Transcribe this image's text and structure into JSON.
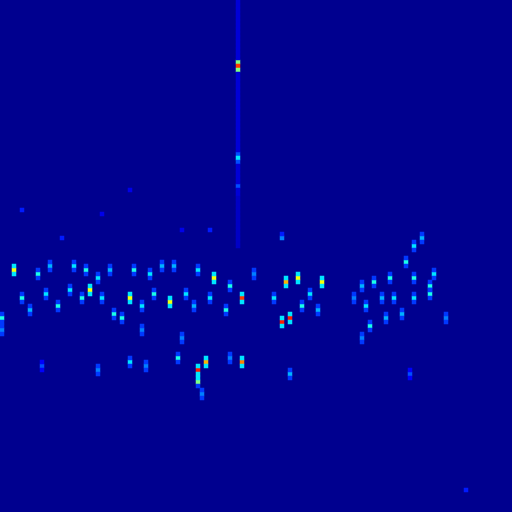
{
  "chart_data": {
    "type": "heatmap",
    "tick_labels": false,
    "grid": false,
    "xlim": [
      0,
      127
    ],
    "ylim": [
      0,
      127
    ],
    "zlim": [
      0,
      1
    ],
    "cells": [
      [
        3,
        60,
        0.62
      ],
      [
        3,
        61,
        0.35
      ],
      [
        3,
        59,
        0.35
      ],
      [
        9,
        59,
        0.4
      ],
      [
        9,
        60,
        0.18
      ],
      [
        9,
        58,
        0.18
      ],
      [
        12,
        61,
        0.3
      ],
      [
        12,
        62,
        0.18
      ],
      [
        12,
        60,
        0.18
      ],
      [
        18,
        61,
        0.35
      ],
      [
        18,
        62,
        0.18
      ],
      [
        18,
        60,
        0.18
      ],
      [
        21,
        60,
        0.4
      ],
      [
        21,
        61,
        0.18
      ],
      [
        21,
        59,
        0.18
      ],
      [
        24,
        58,
        0.35
      ],
      [
        24,
        59,
        0.18
      ],
      [
        24,
        57,
        0.18
      ],
      [
        27,
        60,
        0.3
      ],
      [
        27,
        61,
        0.18
      ],
      [
        27,
        59,
        0.18
      ],
      [
        33,
        60,
        0.4
      ],
      [
        33,
        61,
        0.18
      ],
      [
        33,
        59,
        0.18
      ],
      [
        37,
        59,
        0.35
      ],
      [
        37,
        60,
        0.18
      ],
      [
        37,
        58,
        0.18
      ],
      [
        40,
        61,
        0.3
      ],
      [
        40,
        62,
        0.18
      ],
      [
        40,
        60,
        0.18
      ],
      [
        43,
        61,
        0.3
      ],
      [
        43,
        62,
        0.18
      ],
      [
        43,
        60,
        0.18
      ],
      [
        49,
        60,
        0.35
      ],
      [
        49,
        61,
        0.18
      ],
      [
        49,
        59,
        0.18
      ],
      [
        53,
        58,
        0.62
      ],
      [
        53,
        59,
        0.35
      ],
      [
        53,
        57,
        0.35
      ],
      [
        57,
        56,
        0.4
      ],
      [
        57,
        57,
        0.18
      ],
      [
        57,
        55,
        0.18
      ],
      [
        63,
        59,
        0.25
      ],
      [
        63,
        60,
        0.18
      ],
      [
        63,
        58,
        0.18
      ],
      [
        71,
        57,
        0.7
      ],
      [
        71,
        58,
        0.35
      ],
      [
        71,
        56,
        0.35
      ],
      [
        74,
        58,
        0.62
      ],
      [
        74,
        59,
        0.35
      ],
      [
        74,
        57,
        0.35
      ],
      [
        80,
        57,
        0.62
      ],
      [
        80,
        58,
        0.35
      ],
      [
        80,
        56,
        0.35
      ],
      [
        90,
        56,
        0.3
      ],
      [
        90,
        57,
        0.18
      ],
      [
        90,
        55,
        0.18
      ],
      [
        93,
        57,
        0.4
      ],
      [
        93,
        58,
        0.18
      ],
      [
        93,
        56,
        0.18
      ],
      [
        97,
        58,
        0.4
      ],
      [
        97,
        59,
        0.18
      ],
      [
        97,
        57,
        0.18
      ],
      [
        101,
        62,
        0.4
      ],
      [
        101,
        63,
        0.18
      ],
      [
        101,
        61,
        0.18
      ],
      [
        103,
        66,
        0.35
      ],
      [
        103,
        67,
        0.18
      ],
      [
        103,
        65,
        0.18
      ],
      [
        105,
        68,
        0.3
      ],
      [
        105,
        69,
        0.18
      ],
      [
        105,
        67,
        0.18
      ],
      [
        107,
        56,
        0.4
      ],
      [
        107,
        57,
        0.18
      ],
      [
        107,
        55,
        0.18
      ],
      [
        108,
        59,
        0.35
      ],
      [
        108,
        60,
        0.18
      ],
      [
        108,
        58,
        0.18
      ],
      [
        103,
        58,
        0.4
      ],
      [
        103,
        59,
        0.18
      ],
      [
        103,
        57,
        0.18
      ],
      [
        0,
        48,
        0.4
      ],
      [
        0,
        49,
        0.18
      ],
      [
        0,
        47,
        0.18
      ],
      [
        5,
        53,
        0.4
      ],
      [
        5,
        54,
        0.18
      ],
      [
        5,
        52,
        0.18
      ],
      [
        7,
        50,
        0.3
      ],
      [
        7,
        51,
        0.18
      ],
      [
        7,
        49,
        0.18
      ],
      [
        11,
        54,
        0.35
      ],
      [
        11,
        55,
        0.18
      ],
      [
        11,
        53,
        0.18
      ],
      [
        14,
        51,
        0.4
      ],
      [
        14,
        52,
        0.18
      ],
      [
        14,
        50,
        0.18
      ],
      [
        17,
        55,
        0.35
      ],
      [
        17,
        56,
        0.18
      ],
      [
        17,
        54,
        0.18
      ],
      [
        20,
        53,
        0.4
      ],
      [
        20,
        54,
        0.18
      ],
      [
        20,
        52,
        0.18
      ],
      [
        22,
        55,
        0.62
      ],
      [
        22,
        56,
        0.35
      ],
      [
        22,
        54,
        0.35
      ],
      [
        25,
        53,
        0.35
      ],
      [
        25,
        54,
        0.18
      ],
      [
        25,
        52,
        0.18
      ],
      [
        28,
        49,
        0.4
      ],
      [
        28,
        50,
        0.18
      ],
      [
        28,
        48,
        0.18
      ],
      [
        30,
        48,
        0.4
      ],
      [
        30,
        49,
        0.18
      ],
      [
        30,
        47,
        0.18
      ],
      [
        32,
        53,
        0.62
      ],
      [
        32,
        54,
        0.35
      ],
      [
        32,
        52,
        0.35
      ],
      [
        35,
        51,
        0.35
      ],
      [
        35,
        52,
        0.18
      ],
      [
        35,
        50,
        0.18
      ],
      [
        38,
        54,
        0.4
      ],
      [
        38,
        55,
        0.18
      ],
      [
        38,
        53,
        0.18
      ],
      [
        42,
        52,
        0.62
      ],
      [
        42,
        53,
        0.35
      ],
      [
        42,
        51,
        0.35
      ],
      [
        46,
        54,
        0.35
      ],
      [
        46,
        55,
        0.18
      ],
      [
        46,
        53,
        0.18
      ],
      [
        48,
        51,
        0.3
      ],
      [
        48,
        52,
        0.18
      ],
      [
        48,
        50,
        0.18
      ],
      [
        52,
        53,
        0.35
      ],
      [
        52,
        54,
        0.18
      ],
      [
        52,
        52,
        0.18
      ],
      [
        56,
        50,
        0.4
      ],
      [
        56,
        51,
        0.18
      ],
      [
        56,
        49,
        0.18
      ],
      [
        60,
        53,
        0.82
      ],
      [
        60,
        54,
        0.35
      ],
      [
        60,
        52,
        0.35
      ],
      [
        68,
        53,
        0.35
      ],
      [
        68,
        54,
        0.18
      ],
      [
        68,
        52,
        0.18
      ],
      [
        70,
        47,
        0.85
      ],
      [
        70,
        48,
        0.35
      ],
      [
        70,
        46,
        0.35
      ],
      [
        72,
        48,
        0.85
      ],
      [
        72,
        49,
        0.35
      ],
      [
        72,
        47,
        0.35
      ],
      [
        75,
        51,
        0.4
      ],
      [
        75,
        52,
        0.18
      ],
      [
        75,
        50,
        0.18
      ],
      [
        77,
        54,
        0.35
      ],
      [
        77,
        55,
        0.18
      ],
      [
        77,
        53,
        0.18
      ],
      [
        79,
        50,
        0.3
      ],
      [
        79,
        51,
        0.18
      ],
      [
        79,
        49,
        0.18
      ],
      [
        88,
        53,
        0.25
      ],
      [
        88,
        54,
        0.18
      ],
      [
        88,
        52,
        0.18
      ],
      [
        91,
        51,
        0.35
      ],
      [
        91,
        52,
        0.18
      ],
      [
        91,
        50,
        0.18
      ],
      [
        92,
        46,
        0.4
      ],
      [
        92,
        47,
        0.18
      ],
      [
        92,
        45,
        0.18
      ],
      [
        95,
        53,
        0.3
      ],
      [
        95,
        54,
        0.18
      ],
      [
        95,
        52,
        0.18
      ],
      [
        98,
        53,
        0.35
      ],
      [
        98,
        54,
        0.18
      ],
      [
        98,
        52,
        0.18
      ],
      [
        100,
        49,
        0.3
      ],
      [
        100,
        50,
        0.18
      ],
      [
        100,
        48,
        0.18
      ],
      [
        103,
        53,
        0.35
      ],
      [
        103,
        54,
        0.18
      ],
      [
        103,
        52,
        0.18
      ],
      [
        107,
        54,
        0.4
      ],
      [
        107,
        55,
        0.18
      ],
      [
        107,
        53,
        0.18
      ],
      [
        111,
        48,
        0.25
      ],
      [
        111,
        49,
        0.18
      ],
      [
        111,
        47,
        0.18
      ],
      [
        96,
        48,
        0.3
      ],
      [
        96,
        49,
        0.18
      ],
      [
        96,
        47,
        0.18
      ],
      [
        90,
        43,
        0.25
      ],
      [
        90,
        44,
        0.18
      ],
      [
        90,
        42,
        0.18
      ],
      [
        0,
        45,
        0.25
      ],
      [
        0,
        46,
        0.18
      ],
      [
        0,
        44,
        0.18
      ],
      [
        32,
        37,
        0.35
      ],
      [
        32,
        38,
        0.18
      ],
      [
        32,
        36,
        0.18
      ],
      [
        44,
        38,
        0.4
      ],
      [
        44,
        39,
        0.18
      ],
      [
        44,
        37,
        0.18
      ],
      [
        49,
        35,
        0.85
      ],
      [
        49,
        36,
        0.35
      ],
      [
        49,
        34,
        0.35
      ],
      [
        49,
        32,
        0.5
      ],
      [
        49,
        33,
        0.35
      ],
      [
        49,
        31,
        0.18
      ],
      [
        51,
        37,
        0.7
      ],
      [
        51,
        38,
        0.35
      ],
      [
        51,
        36,
        0.35
      ],
      [
        60,
        37,
        0.75
      ],
      [
        60,
        38,
        0.35
      ],
      [
        60,
        36,
        0.35
      ],
      [
        72,
        34,
        0.3
      ],
      [
        72,
        35,
        0.18
      ],
      [
        72,
        33,
        0.18
      ],
      [
        24,
        35,
        0.25
      ],
      [
        24,
        36,
        0.18
      ],
      [
        24,
        34,
        0.18
      ],
      [
        10,
        36,
        0.2
      ],
      [
        10,
        37,
        0.12
      ],
      [
        10,
        35,
        0.12
      ],
      [
        36,
        36,
        0.25
      ],
      [
        36,
        37,
        0.18
      ],
      [
        36,
        35,
        0.18
      ],
      [
        57,
        38,
        0.25
      ],
      [
        57,
        39,
        0.18
      ],
      [
        57,
        37,
        0.18
      ],
      [
        102,
        34,
        0.2
      ],
      [
        102,
        35,
        0.12
      ],
      [
        102,
        33,
        0.12
      ],
      [
        50,
        29,
        0.25
      ],
      [
        50,
        30,
        0.18
      ],
      [
        50,
        28,
        0.18
      ],
      [
        45,
        43,
        0.25
      ],
      [
        45,
        44,
        0.18
      ],
      [
        45,
        42,
        0.18
      ],
      [
        35,
        45,
        0.25
      ],
      [
        35,
        46,
        0.18
      ],
      [
        35,
        44,
        0.18
      ],
      [
        5,
        75,
        0.15
      ],
      [
        25,
        74,
        0.1
      ],
      [
        32,
        80,
        0.1
      ],
      [
        52,
        70,
        0.15
      ],
      [
        70,
        68,
        0.25
      ],
      [
        70,
        69,
        0.15
      ],
      [
        45,
        70,
        0.1
      ],
      [
        15,
        68,
        0.15
      ],
      [
        116,
        5,
        0.15
      ],
      [
        59,
        112,
        0.5
      ],
      [
        59,
        111,
        0.82
      ],
      [
        59,
        110,
        0.5
      ],
      [
        59,
        89,
        0.2
      ],
      [
        59,
        88,
        0.35
      ],
      [
        59,
        87,
        0.2
      ],
      [
        59,
        81,
        0.2
      ],
      [
        59,
        127,
        0.08
      ],
      [
        59,
        126,
        0.08
      ],
      [
        59,
        125,
        0.08
      ],
      [
        59,
        124,
        0.08
      ],
      [
        59,
        123,
        0.08
      ],
      [
        59,
        122,
        0.08
      ],
      [
        59,
        121,
        0.08
      ],
      [
        59,
        120,
        0.08
      ],
      [
        59,
        119,
        0.08
      ],
      [
        59,
        118,
        0.08
      ],
      [
        59,
        117,
        0.08
      ],
      [
        59,
        116,
        0.08
      ],
      [
        59,
        115,
        0.08
      ],
      [
        59,
        114,
        0.08
      ],
      [
        59,
        113,
        0.08
      ],
      [
        59,
        109,
        0.08
      ],
      [
        59,
        108,
        0.08
      ],
      [
        59,
        107,
        0.08
      ],
      [
        59,
        106,
        0.08
      ],
      [
        59,
        105,
        0.08
      ],
      [
        59,
        104,
        0.08
      ],
      [
        59,
        103,
        0.08
      ],
      [
        59,
        102,
        0.08
      ],
      [
        59,
        101,
        0.08
      ],
      [
        59,
        100,
        0.08
      ],
      [
        59,
        99,
        0.08
      ],
      [
        59,
        98,
        0.08
      ],
      [
        59,
        97,
        0.08
      ],
      [
        59,
        96,
        0.08
      ],
      [
        59,
        95,
        0.08
      ],
      [
        59,
        94,
        0.08
      ],
      [
        59,
        93,
        0.08
      ],
      [
        59,
        92,
        0.08
      ],
      [
        59,
        91,
        0.08
      ],
      [
        59,
        90,
        0.08
      ],
      [
        59,
        86,
        0.08
      ],
      [
        59,
        85,
        0.08
      ],
      [
        59,
        84,
        0.08
      ],
      [
        59,
        83,
        0.08
      ],
      [
        59,
        82,
        0.08
      ],
      [
        59,
        80,
        0.08
      ],
      [
        59,
        79,
        0.08
      ],
      [
        59,
        78,
        0.06
      ],
      [
        59,
        77,
        0.06
      ],
      [
        59,
        76,
        0.06
      ],
      [
        59,
        75,
        0.06
      ],
      [
        59,
        74,
        0.06
      ],
      [
        59,
        73,
        0.06
      ],
      [
        59,
        72,
        0.06
      ],
      [
        59,
        71,
        0.06
      ],
      [
        59,
        70,
        0.06
      ],
      [
        59,
        69,
        0.06
      ],
      [
        59,
        68,
        0.06
      ],
      [
        59,
        67,
        0.06
      ],
      [
        59,
        66,
        0.06
      ]
    ]
  }
}
